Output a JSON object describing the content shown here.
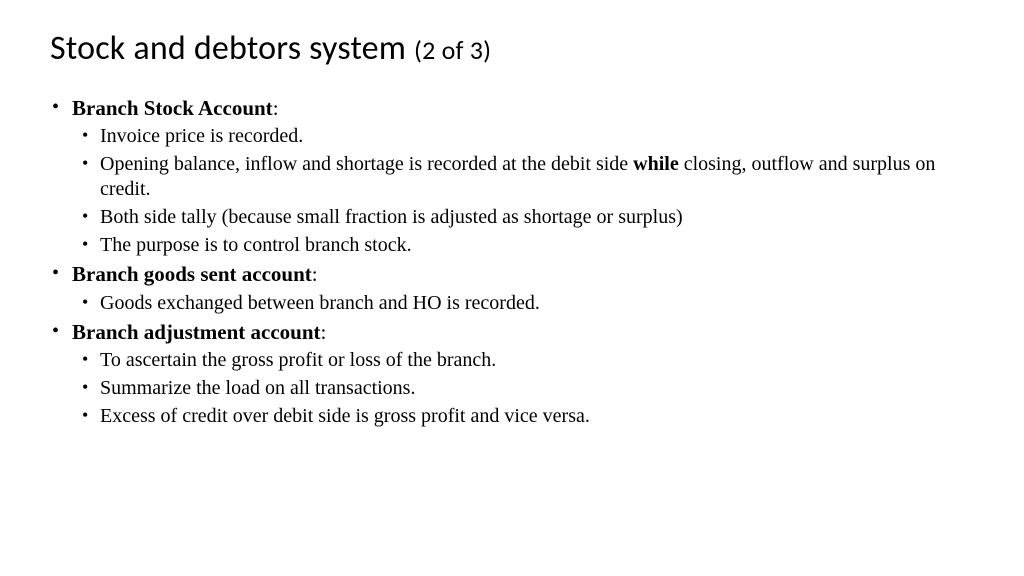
{
  "title_main": "Stock and debtors system ",
  "title_counter": "(2 of 3)",
  "sections": [
    {
      "heading": "Branch Stock Account",
      "items": [
        {
          "pre": "Invoice price is recorded."
        },
        {
          "pre": "Opening balance, inflow  and shortage is recorded at the debit side ",
          "bold": "while",
          "post": " closing, outflow and surplus on credit."
        },
        {
          "pre": "Both side tally (because small fraction is adjusted as shortage or surplus)"
        },
        {
          "pre": "The purpose is to control branch stock."
        }
      ]
    },
    {
      "heading": "Branch goods sent account",
      "items": [
        {
          "pre": "Goods exchanged between branch and HO is recorded."
        }
      ]
    },
    {
      "heading": "Branch adjustment account",
      "indent": true,
      "items": [
        {
          "pre": "To ascertain the gross profit or loss of the branch."
        },
        {
          "pre": "Summarize the load  on all transactions."
        },
        {
          "pre": "Excess of credit over debit side is gross profit and vice versa."
        }
      ]
    }
  ]
}
